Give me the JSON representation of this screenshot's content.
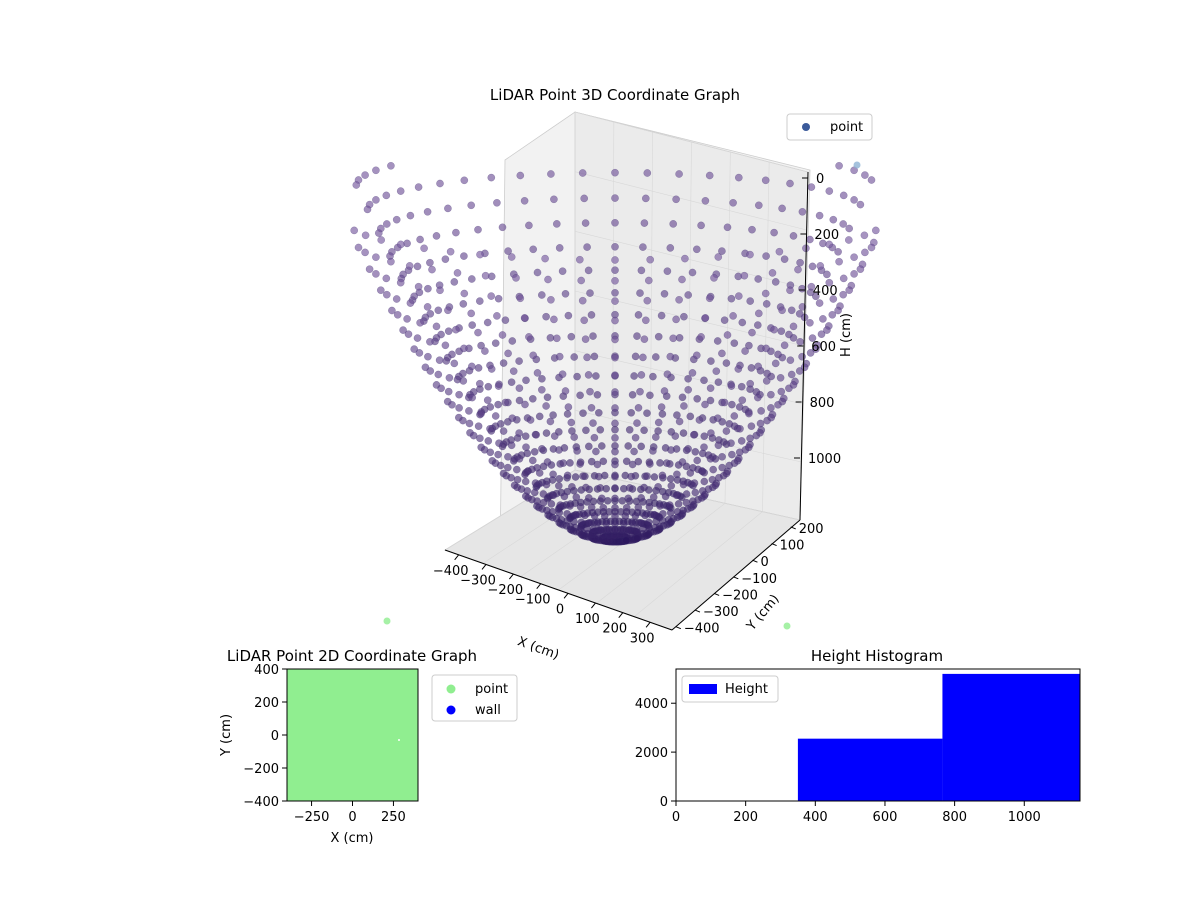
{
  "chart_data": [
    {
      "type": "scatter3d",
      "title": "LiDAR Point 3D Coordinate Graph",
      "xlabel": "X (cm)",
      "ylabel": "Y (cm)",
      "zlabel": "H (cm)",
      "x_ticks": [
        -400,
        -300,
        -200,
        -100,
        0,
        100,
        200,
        300
      ],
      "y_ticks": [
        -400,
        -300,
        -200,
        -100,
        0,
        100,
        200
      ],
      "z_ticks": [
        0,
        200,
        400,
        600,
        800,
        1000
      ],
      "x_tick_labels": [
        "−400",
        "−300",
        "−200",
        "−100",
        "0",
        "100",
        "200",
        "300"
      ],
      "y_tick_labels": [
        "−400",
        "−300",
        "−200",
        "−100",
        "0",
        "100",
        "200"
      ],
      "z_tick_labels": [
        "0",
        "200",
        "400",
        "600",
        "800",
        "1000"
      ],
      "xlim": [
        -400,
        400
      ],
      "ylim": [
        -400,
        400
      ],
      "zlim": [
        0,
        1150
      ],
      "z_inverted": true,
      "description_of_points": "bowl-shaped point cloud radiating from center, depth shading purple",
      "point_color": "#5b4a8f",
      "legend": [
        {
          "label": "point",
          "color": "#3b5a9a"
        }
      ],
      "legend_position": "top-right"
    },
    {
      "type": "scatter",
      "title": "LiDAR Point 2D Coordinate Graph",
      "xlabel": "X (cm)",
      "ylabel": "Y (cm)",
      "xlim": [
        -400,
        400
      ],
      "ylim": [
        -400,
        400
      ],
      "x_ticks": [
        -250,
        0,
        250
      ],
      "y_ticks": [
        -400,
        -200,
        0,
        200,
        400
      ],
      "x_tick_labels": [
        "−250",
        "0",
        "250"
      ],
      "y_tick_labels": [
        "−400",
        "−200",
        "0",
        "200",
        "400"
      ],
      "series": [
        {
          "name": "point",
          "color": "#90ee90"
        },
        {
          "name": "wall",
          "color": "#0000ff"
        }
      ],
      "legend_position": "outside-right"
    },
    {
      "type": "bar",
      "title": "Height Histogram",
      "bins": [
        [
          0,
          350
        ],
        [
          350,
          765
        ],
        [
          765,
          1160
        ]
      ],
      "values": [
        0,
        2550,
        5200
      ],
      "xlim": [
        0,
        1160
      ],
      "ylim": [
        0,
        5400
      ],
      "x_ticks": [
        0,
        200,
        400,
        600,
        800,
        1000
      ],
      "y_ticks": [
        0,
        2000,
        4000
      ],
      "x_tick_labels": [
        "0",
        "200",
        "400",
        "600",
        "800",
        "1000"
      ],
      "y_tick_labels": [
        "0",
        "2000",
        "4000"
      ],
      "series": [
        {
          "name": "Height",
          "color": "#0000ff"
        }
      ],
      "legend_position": "upper-left"
    }
  ]
}
